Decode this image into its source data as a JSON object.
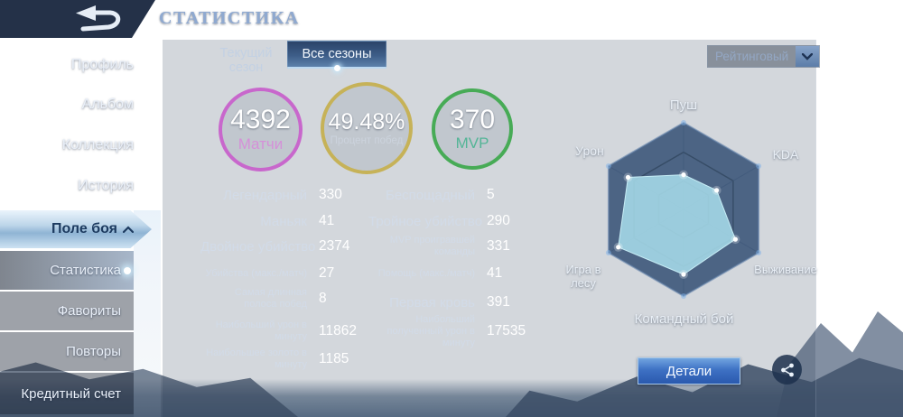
{
  "header": {
    "title": "СТАТИСТИКА"
  },
  "sidebar": {
    "items": [
      {
        "label": "Профиль"
      },
      {
        "label": "Альбом"
      },
      {
        "label": "Коллекция"
      },
      {
        "label": "История"
      },
      {
        "label": "Поле боя",
        "expanded": true
      }
    ],
    "subitems": [
      {
        "label": "Статистика",
        "active": true
      },
      {
        "label": "Фавориты",
        "active": false
      },
      {
        "label": "Повторы",
        "active": false
      },
      {
        "label": "Кредитный счет",
        "active": false
      }
    ]
  },
  "tabs": [
    {
      "label": "Текущий сезон",
      "active": false
    },
    {
      "label": "Все сезоны",
      "active": true
    }
  ],
  "filter": {
    "selected": "Рейтинговый"
  },
  "summary_circles": [
    {
      "value": "4392",
      "label": "Матчи",
      "ring_color": "#c867cc",
      "label_color": "#d591d8"
    },
    {
      "value": "49.48%",
      "label": "Процент побед",
      "ring_color": "#c6b258",
      "label_color": "#ccd3dd"
    },
    {
      "value": "370",
      "label": "MVP",
      "ring_color": "#47ab56",
      "label_color": "#53b596"
    }
  ],
  "stats": {
    "left": [
      {
        "label": "Легендарный",
        "value": "330"
      },
      {
        "label": "Маньяк",
        "value": "41"
      },
      {
        "label": "Двойное убийство",
        "value": "2374"
      },
      {
        "label": "Убийства (макс./матч)",
        "value": "27"
      },
      {
        "label": "Самая длинная полоса побед",
        "value": "8"
      },
      {
        "label": "Наибольший урон в минуту",
        "value": "11862"
      },
      {
        "label": "Наибольшее золото в минуту",
        "value": "1185"
      }
    ],
    "right": [
      {
        "label": "Беспощадный",
        "value": "5"
      },
      {
        "label": "Тройное убийство",
        "value": "290"
      },
      {
        "label": "MVP проигравшей команды",
        "value": "331"
      },
      {
        "label": "Помощь (макс./матч)",
        "value": "41"
      },
      {
        "label": "Первая кровь",
        "value": "391"
      },
      {
        "label": "Наибольший полученный урон в минуту",
        "value": "17535"
      }
    ]
  },
  "chart_data": {
    "type": "radar",
    "categories": [
      "Пуш",
      "KDA",
      "Выживание",
      "Командный бой",
      "Игра в лесу",
      "Урон"
    ],
    "values": [
      0.4,
      0.44,
      0.69,
      0.75,
      0.87,
      0.74
    ],
    "max": 1.0,
    "rings": [
      0.33,
      0.66,
      1.0
    ],
    "grid_fill": "#2e4a70",
    "grid_stroke": "#5d7ea8",
    "fill_color": "#a6dbe9",
    "stroke_color": "#c6ecf5",
    "dot_color": "#ffffff",
    "legend_position": "around-vertices"
  },
  "footer": {
    "details_label": "Детали"
  }
}
